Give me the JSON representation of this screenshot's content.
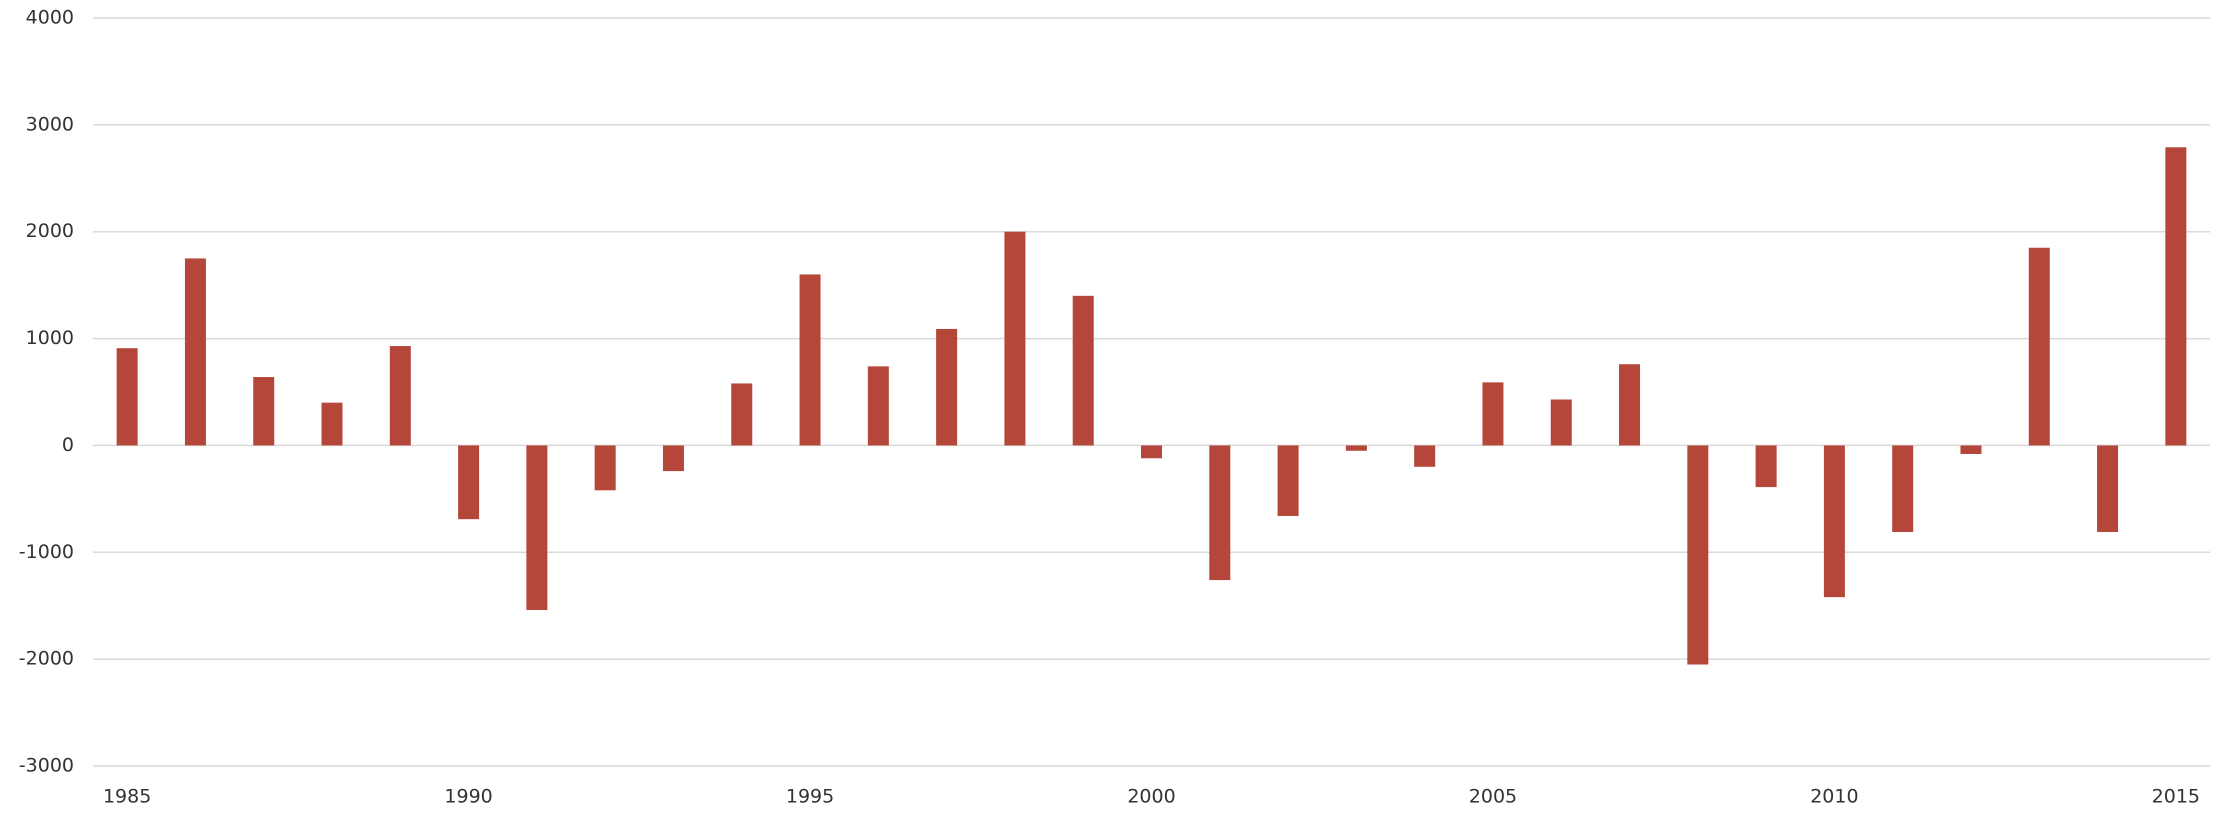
{
  "chart_data": {
    "type": "bar",
    "categories": [
      "1985",
      null,
      null,
      null,
      null,
      "1990",
      null,
      null,
      null,
      null,
      "1995",
      null,
      null,
      null,
      null,
      "2000",
      null,
      null,
      null,
      null,
      "2005",
      null,
      null,
      null,
      null,
      "2010",
      null,
      null,
      null,
      null,
      "2015"
    ],
    "values": [
      910,
      1750,
      640,
      400,
      930,
      -690,
      -1540,
      -420,
      -240,
      580,
      1600,
      740,
      1090,
      2000,
      1400,
      -120,
      -1260,
      -660,
      -50,
      -200,
      590,
      430,
      760,
      -2050,
      -390,
      -1420,
      -810,
      -80,
      1850,
      -810,
      2790
    ],
    "color": "#b5473a",
    "ylim": [
      -3000,
      4000
    ],
    "yticks": [
      -3000,
      -2000,
      -1000,
      0,
      1000,
      2000,
      3000,
      4000
    ],
    "grid": true
  }
}
